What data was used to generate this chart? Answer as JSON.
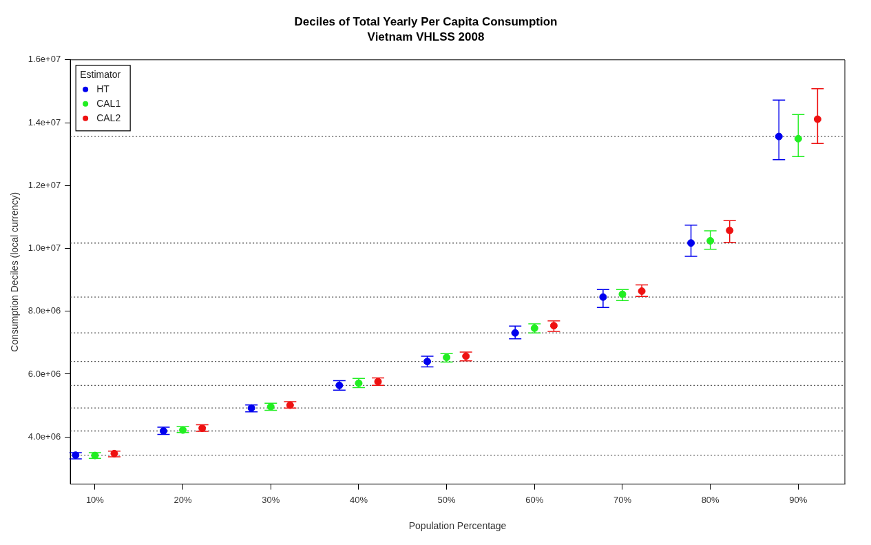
{
  "chart_data": {
    "type": "scatter",
    "title": "Deciles of Total Yearly Per Capita Consumption",
    "subtitle": "Vietnam VHLSS 2008",
    "xlabel": "Population Percentage",
    "ylabel": "Consumption Deciles (local currency)",
    "legend_title": "Estimator",
    "legend": "top left",
    "grid": false,
    "marker": "circle",
    "xlim": [
      7.2,
      95.3
    ],
    "xticks": [
      {
        "value": 10,
        "label": "10%"
      },
      {
        "value": 20,
        "label": "20%"
      },
      {
        "value": 30,
        "label": "30%"
      },
      {
        "value": 40,
        "label": "40%"
      },
      {
        "value": 50,
        "label": "50%"
      },
      {
        "value": 60,
        "label": "60%"
      },
      {
        "value": 70,
        "label": "70%"
      },
      {
        "value": 80,
        "label": "80%"
      },
      {
        "value": 90,
        "label": "90%"
      }
    ],
    "ylim": [
      2500000,
      16000000
    ],
    "yticks": [
      {
        "value": 4000000,
        "label": "4.0e+06"
      },
      {
        "value": 6000000,
        "label": "6.0e+06"
      },
      {
        "value": 8000000,
        "label": "8.0e+06"
      },
      {
        "value": 10000000,
        "label": "1.0e+07"
      },
      {
        "value": 12000000,
        "label": "1.2e+07"
      },
      {
        "value": 14000000,
        "label": "1.4e+07"
      },
      {
        "value": 16000000,
        "label": "1.6e+07"
      }
    ],
    "series": [
      {
        "name": "HT",
        "color": "#0000ee",
        "x": [
          7.8,
          17.8,
          27.8,
          37.8,
          47.8,
          57.8,
          67.8,
          77.8,
          87.8
        ],
        "values": [
          3420000,
          4190000,
          4920000,
          5640000,
          6400000,
          7310000,
          8450000,
          10170000,
          13560000
        ],
        "errors": [
          [
            3300000,
            3500000
          ],
          [
            4080000,
            4310000
          ],
          [
            4800000,
            5020000
          ],
          [
            5490000,
            5790000
          ],
          [
            6230000,
            6570000
          ],
          [
            7120000,
            7530000
          ],
          [
            8120000,
            8690000
          ],
          [
            9750000,
            10740000
          ],
          [
            12820000,
            14720000
          ]
        ]
      },
      {
        "name": "CAL1",
        "color": "#22ee22",
        "x": [
          10,
          20,
          30,
          40,
          50,
          60,
          70,
          80,
          90
        ],
        "values": [
          3410000,
          4220000,
          4960000,
          5710000,
          6530000,
          7460000,
          8540000,
          10240000,
          13490000
        ],
        "errors": [
          [
            3320000,
            3500000
          ],
          [
            4140000,
            4330000
          ],
          [
            4850000,
            5070000
          ],
          [
            5570000,
            5860000
          ],
          [
            6380000,
            6650000
          ],
          [
            7310000,
            7600000
          ],
          [
            8340000,
            8690000
          ],
          [
            9970000,
            10560000
          ],
          [
            12920000,
            14260000
          ]
        ]
      },
      {
        "name": "CAL2",
        "color": "#ee1111",
        "x": [
          12.2,
          22.2,
          32.2,
          42.2,
          52.2,
          62.2,
          72.2,
          82.2,
          92.2
        ],
        "values": [
          3470000,
          4280000,
          5010000,
          5760000,
          6570000,
          7540000,
          8640000,
          10570000,
          14110000
        ],
        "errors": [
          [
            3370000,
            3550000
          ],
          [
            4180000,
            4390000
          ],
          [
            4920000,
            5120000
          ],
          [
            5640000,
            5880000
          ],
          [
            6420000,
            6700000
          ],
          [
            7360000,
            7690000
          ],
          [
            8470000,
            8840000
          ],
          [
            10190000,
            10880000
          ],
          [
            13340000,
            15080000
          ]
        ]
      }
    ],
    "ref_lines": [
      {
        "axis": "y",
        "value": 3420000,
        "color": "#555555",
        "line_style": "dotted"
      },
      {
        "axis": "y",
        "value": 4190000,
        "color": "#555555",
        "line_style": "dotted"
      },
      {
        "axis": "y",
        "value": 4920000,
        "color": "#555555",
        "line_style": "dotted"
      },
      {
        "axis": "y",
        "value": 5640000,
        "color": "#555555",
        "line_style": "dotted"
      },
      {
        "axis": "y",
        "value": 6400000,
        "color": "#555555",
        "line_style": "dotted"
      },
      {
        "axis": "y",
        "value": 7310000,
        "color": "#555555",
        "line_style": "dotted"
      },
      {
        "axis": "y",
        "value": 8450000,
        "color": "#555555",
        "line_style": "dotted"
      },
      {
        "axis": "y",
        "value": 10170000,
        "color": "#555555",
        "line_style": "dotted"
      },
      {
        "axis": "y",
        "value": 13560000,
        "color": "#555555",
        "line_style": "dotted"
      }
    ]
  }
}
